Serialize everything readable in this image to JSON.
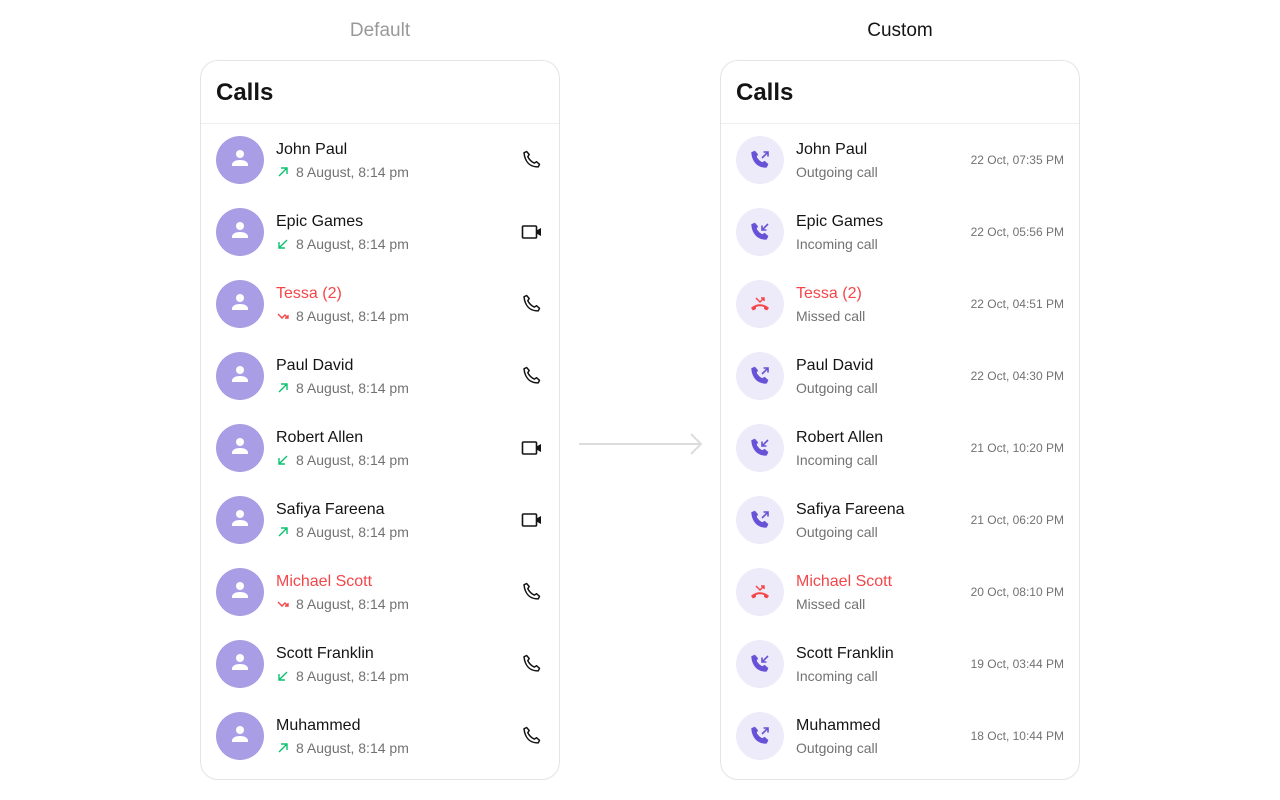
{
  "labels": {
    "default": "Default",
    "custom": "Custom"
  },
  "default_panel": {
    "title": "Calls",
    "rows": [
      {
        "name": "John Paul",
        "status": "outgoing",
        "time": "8 August, 8:14 pm",
        "call_type": "audio"
      },
      {
        "name": "Epic Games",
        "status": "incoming",
        "time": "8 August, 8:14 pm",
        "call_type": "video"
      },
      {
        "name": "Tessa (2)",
        "status": "missed",
        "time": "8 August, 8:14 pm",
        "call_type": "audio"
      },
      {
        "name": "Paul David",
        "status": "outgoing",
        "time": "8 August, 8:14 pm",
        "call_type": "audio"
      },
      {
        "name": "Robert Allen",
        "status": "incoming",
        "time": "8 August, 8:14 pm",
        "call_type": "video"
      },
      {
        "name": "Safiya Fareena",
        "status": "outgoing",
        "time": "8 August, 8:14 pm",
        "call_type": "video"
      },
      {
        "name": "Michael Scott",
        "status": "missed",
        "time": "8 August, 8:14 pm",
        "call_type": "audio"
      },
      {
        "name": "Scott Franklin",
        "status": "incoming",
        "time": "8 August, 8:14 pm",
        "call_type": "audio"
      },
      {
        "name": "Muhammed",
        "status": "outgoing",
        "time": "8 August, 8:14 pm",
        "call_type": "audio"
      }
    ]
  },
  "custom_panel": {
    "title": "Calls",
    "rows": [
      {
        "name": "John Paul",
        "status": "outgoing",
        "subtitle": "Outgoing call",
        "time": "22 Oct, 07:35 PM"
      },
      {
        "name": "Epic Games",
        "status": "incoming",
        "subtitle": "Incoming call",
        "time": "22 Oct, 05:56 PM"
      },
      {
        "name": "Tessa (2)",
        "status": "missed",
        "subtitle": "Missed call",
        "time": "22 Oct, 04:51 PM"
      },
      {
        "name": "Paul David",
        "status": "outgoing",
        "subtitle": "Outgoing call",
        "time": "22 Oct, 04:30 PM"
      },
      {
        "name": "Robert Allen",
        "status": "incoming",
        "subtitle": "Incoming call",
        "time": "21 Oct, 10:20 PM"
      },
      {
        "name": "Safiya Fareena",
        "status": "outgoing",
        "subtitle": "Outgoing call",
        "time": "21 Oct, 06:20 PM"
      },
      {
        "name": "Michael Scott",
        "status": "missed",
        "subtitle": "Missed call",
        "time": "20 Oct, 08:10 PM"
      },
      {
        "name": "Scott Franklin",
        "status": "incoming",
        "subtitle": "Incoming call",
        "time": "19 Oct, 03:44 PM"
      },
      {
        "name": "Muhammed",
        "status": "outgoing",
        "subtitle": "Outgoing call",
        "time": "18 Oct, 10:44 PM"
      }
    ]
  },
  "colors": {
    "accent": "#6852d6",
    "avatar": "#a99ee6",
    "missed": "#f44649",
    "outgoing_arrow": "#09c26f",
    "custom_icon_bg": "#edeafa"
  }
}
